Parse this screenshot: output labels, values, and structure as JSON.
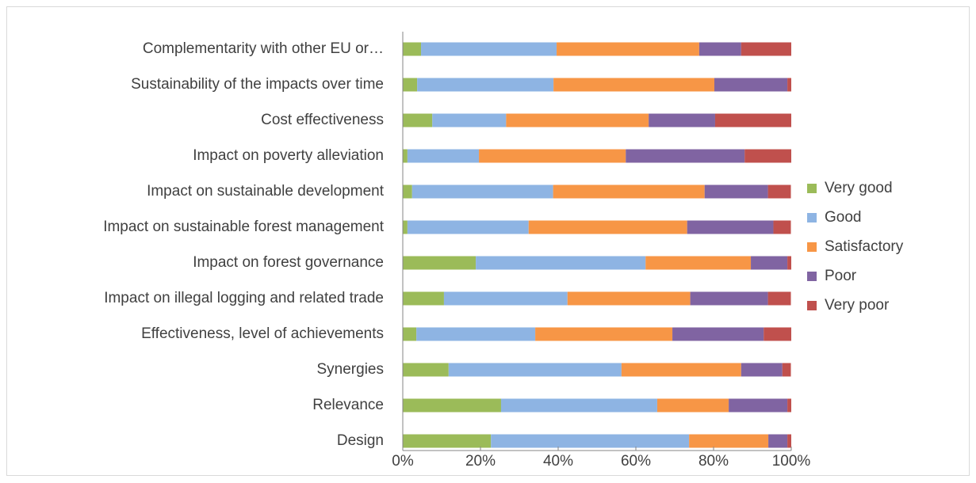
{
  "chart_data": {
    "type": "stacked_bar_100",
    "orientation": "horizontal",
    "categories": [
      "Complementarity with other EU or…",
      "Sustainability of the impacts over time",
      "Cost effectiveness",
      "Impact on poverty alleviation",
      "Impact on sustainable development",
      "Impact on sustainable forest management",
      "Impact on forest governance",
      "Impact on illegal logging and related trade",
      "Effectiveness, level of achievements",
      "Synergies",
      "Relevance",
      "Design"
    ],
    "series": [
      {
        "name": "Very good",
        "color": "#9bbb59",
        "values": [
          4.7,
          3.7,
          7.6,
          1.2,
          2.4,
          1.2,
          18.8,
          10.6,
          3.5,
          11.8,
          25.3,
          22.7
        ]
      },
      {
        "name": "Good",
        "color": "#8eb4e3",
        "values": [
          34.9,
          35.1,
          19.0,
          18.4,
          36.3,
          31.2,
          43.7,
          31.8,
          30.6,
          44.5,
          40.2,
          51.0
        ]
      },
      {
        "name": "Satisfactory",
        "color": "#f79646",
        "values": [
          36.7,
          41.4,
          36.7,
          37.8,
          39.0,
          40.8,
          27.1,
          31.6,
          35.3,
          30.8,
          18.4,
          20.4
        ]
      },
      {
        "name": "Poor",
        "color": "#8064a2",
        "values": [
          10.8,
          18.8,
          17.1,
          30.6,
          16.3,
          22.2,
          9.4,
          20.0,
          23.5,
          10.6,
          15.1,
          4.9
        ]
      },
      {
        "name": "Very poor",
        "color": "#c0504d",
        "values": [
          12.9,
          1.0,
          19.6,
          12.0,
          5.9,
          4.5,
          1.0,
          5.9,
          7.1,
          2.2,
          1.0,
          1.0
        ]
      }
    ],
    "xlim": [
      0,
      100
    ],
    "xticks": [
      {
        "value": 0,
        "label": "0%"
      },
      {
        "value": 20,
        "label": "20%"
      },
      {
        "value": 40,
        "label": "40%"
      },
      {
        "value": 60,
        "label": "60%"
      },
      {
        "value": 80,
        "label": "80%"
      },
      {
        "value": 100,
        "label": "100%"
      }
    ],
    "legend": "right"
  }
}
